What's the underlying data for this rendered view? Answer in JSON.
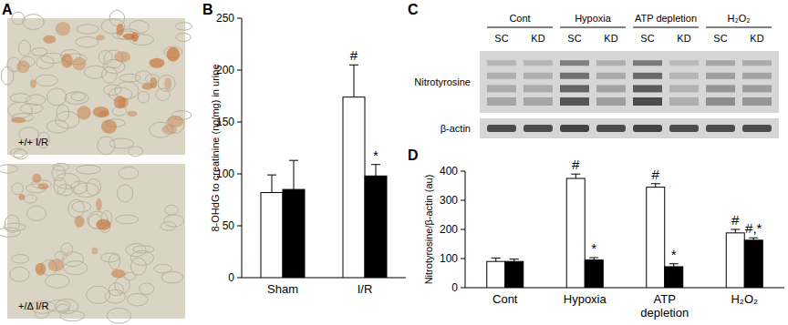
{
  "panels": [
    "A",
    "B",
    "C",
    "D"
  ],
  "micrograph": {
    "labels": [
      "+/+ I/R",
      "+/Δ I/R"
    ]
  },
  "blot": {
    "groups": [
      "Cont",
      "Hypoxia",
      "ATP depletion",
      "H₂O₂"
    ],
    "lanes": [
      "SC",
      "KD"
    ],
    "rows": [
      "Nitrotyrosine",
      "β-actin"
    ]
  },
  "chart_data": [
    {
      "type": "bar",
      "y_label": "8-OHdG to creatinine (ng/mg) in urine",
      "categories": [
        "Sham",
        "I/R"
      ],
      "series": [
        {
          "color": "#ffffff",
          "values": [
            82,
            174
          ],
          "errors": [
            17,
            31
          ]
        },
        {
          "color": "#000000",
          "values": [
            85,
            98
          ],
          "errors": [
            28,
            11
          ]
        }
      ],
      "ylim": [
        0,
        250
      ],
      "yticks": [
        0,
        50,
        100,
        150,
        200,
        250
      ],
      "grid": false,
      "annotations": [
        {
          "text": "#",
          "category": 1,
          "series": 0
        },
        {
          "text": "*",
          "category": 1,
          "series": 1
        }
      ]
    },
    {
      "type": "bar",
      "y_label": "Nitrotyrosine/β-actin (au)",
      "categories": [
        "Cont",
        "Hypoxia",
        "ATP depletion",
        "H₂O₂"
      ],
      "series": [
        {
          "color": "#ffffff",
          "values": [
            90,
            375,
            345,
            188
          ],
          "errors": [
            12,
            15,
            12,
            12
          ]
        },
        {
          "color": "#000000",
          "values": [
            90,
            95,
            72,
            163
          ],
          "errors": [
            8,
            8,
            10,
            8
          ]
        }
      ],
      "ylim": [
        0,
        400
      ],
      "yticks": [
        0,
        100,
        200,
        300,
        400
      ],
      "grid": false,
      "annotations": [
        {
          "text": "#",
          "category": 1,
          "series": 0
        },
        {
          "text": "*",
          "category": 1,
          "series": 1
        },
        {
          "text": "#",
          "category": 2,
          "series": 0
        },
        {
          "text": "*",
          "category": 2,
          "series": 1
        },
        {
          "text": "#",
          "category": 3,
          "series": 0
        },
        {
          "text": "#,*",
          "category": 3,
          "series": 1
        }
      ]
    }
  ]
}
